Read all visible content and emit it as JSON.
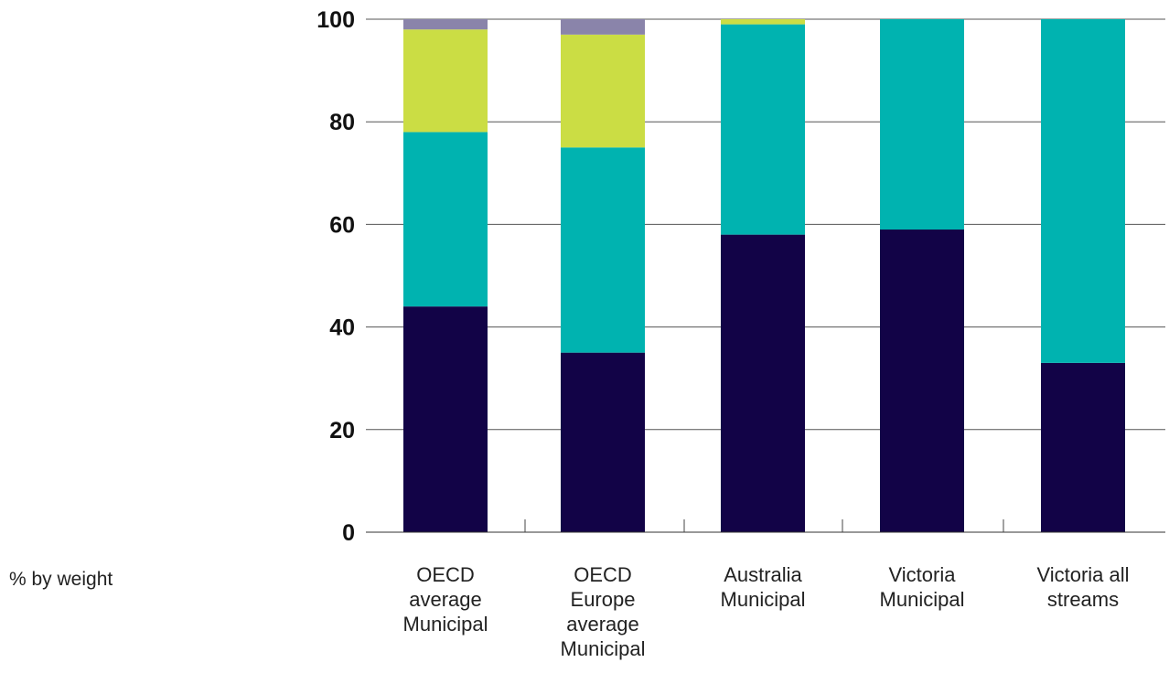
{
  "chart_data": {
    "type": "bar",
    "stacked": true,
    "ylabel": "% by weight",
    "xlabel": "",
    "title": "",
    "ylim": [
      0,
      100
    ],
    "yticks": [
      0,
      20,
      40,
      60,
      80,
      100
    ],
    "grid": true,
    "categories": [
      [
        "OECD",
        "average",
        "Municipal"
      ],
      [
        "OECD",
        "Europe",
        "average",
        "Municipal"
      ],
      [
        "Australia",
        "Municipal"
      ],
      [
        "Victoria",
        "Municipal"
      ],
      [
        "Victoria all",
        "streams"
      ]
    ],
    "series": [
      {
        "color": "#120347",
        "values": [
          44,
          35,
          58,
          59,
          33
        ]
      },
      {
        "color": "#00b3b0",
        "values": [
          34,
          40,
          41,
          41,
          67
        ]
      },
      {
        "color": "#cbdd44",
        "values": [
          20,
          22,
          1,
          0,
          0
        ]
      },
      {
        "color": "#8a84aa",
        "values": [
          2,
          3,
          0,
          0,
          0
        ]
      }
    ]
  }
}
